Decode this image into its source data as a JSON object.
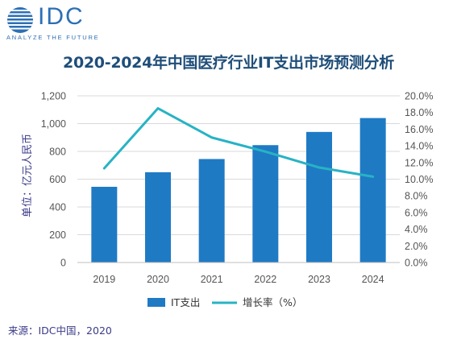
{
  "logo": {
    "name": "IDC",
    "tagline": "ANALYZE THE FUTURE"
  },
  "colors": {
    "bar": "#1f7ac4",
    "line": "#27b3c4",
    "title": "#1f4e79",
    "logo": "#2c6fb5",
    "axis_text": "#3a3a8a"
  },
  "source": "来源：IDC中国，2020",
  "chart_data": {
    "type": "bar",
    "title": "2020-2024年中国医疗行业IT支出市场预测分析",
    "categories": [
      "2019",
      "2020",
      "2021",
      "2022",
      "2023",
      "2024"
    ],
    "ylabel": "单位：亿元人民币",
    "ylim": [
      0,
      1200
    ],
    "yticks": [
      "0",
      "200",
      "400",
      "600",
      "800",
      "1,000",
      "1,200"
    ],
    "y2lim": [
      0,
      20
    ],
    "y2ticks": [
      "0.0%",
      "2.0%",
      "4.0%",
      "6.0%",
      "8.0%",
      "10.0%",
      "12.0%",
      "14.0%",
      "16.0%",
      "18.0%",
      "20.0%"
    ],
    "grid": true,
    "legend_position": "bottom",
    "series": [
      {
        "name": "IT支出",
        "type": "bar",
        "axis": "left",
        "values": [
          545,
          650,
          745,
          845,
          940,
          1040
        ]
      },
      {
        "name": "增长率（%）",
        "type": "line",
        "axis": "right",
        "values": [
          11.3,
          18.5,
          15.0,
          13.3,
          11.4,
          10.3
        ]
      }
    ]
  }
}
